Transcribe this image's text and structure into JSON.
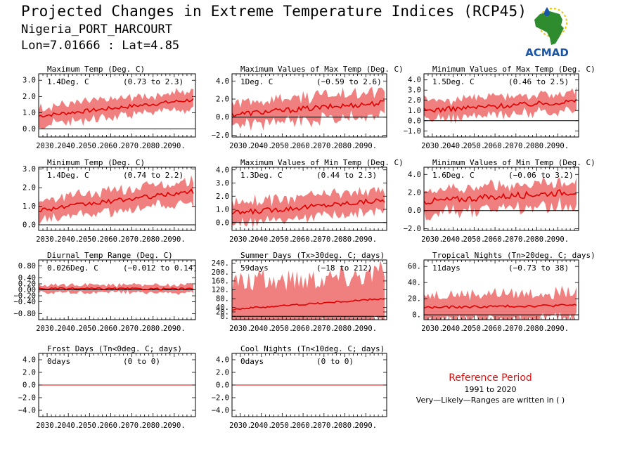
{
  "header": {
    "title": "Projected Changes in Extreme Temperature Indices (RCP45)",
    "location": "Nigeria_PORT_HARCOURT",
    "coords": "Lon=7.01666 : Lat=4.85"
  },
  "logo": {
    "text": "ACMAD",
    "icon": "africa-map-logo"
  },
  "reference": {
    "title": "Reference Period",
    "years": "1991 to 2020",
    "note": "Very—Likely—Ranges are written in ( )"
  },
  "colors": {
    "band": "#f08080",
    "line": "#e00000",
    "zero": "#000000",
    "logo_text": "#1a55a8",
    "logo_green": "#2e8b2e",
    "logo_yellow": "#f0c000"
  },
  "chart_data": [
    {
      "type": "line",
      "title": "Maximum Temp (Deg. C)",
      "mean_text": "1.4Deg. C",
      "range_text": "(0.73 to 2.3)",
      "start": 0.8,
      "end": 1.8,
      "noise": 0.12,
      "band": 0.55,
      "ylim": [
        -0.5,
        3.4
      ],
      "yticks": [
        "0.0",
        "1.0",
        "2.0",
        "3.0"
      ],
      "ytick_values": [
        0,
        1,
        2,
        3
      ],
      "xticks": [
        "2030.",
        "2040.",
        "2050.",
        "2060.",
        "2070.",
        "2080.",
        "2090."
      ],
      "xlim": [
        2026,
        2100
      ]
    },
    {
      "type": "line",
      "title": "Maximum Values of Max Temp (Deg. C)",
      "mean_text": "1Deg. C",
      "range_text": "(−0.59 to 2.6)",
      "start": 0.3,
      "end": 1.6,
      "noise": 0.3,
      "band": 1.3,
      "ylim": [
        -2.2,
        4.8
      ],
      "yticks": [
        "−2.0",
        "0.0",
        "2.0",
        "4.0"
      ],
      "ytick_values": [
        -2,
        0,
        2,
        4
      ],
      "xticks": [
        "2030.",
        "2040.",
        "2050.",
        "2060.",
        "2070.",
        "2080.",
        "2090."
      ],
      "xlim": [
        2026,
        2100
      ]
    },
    {
      "type": "line",
      "title": "Minimum Values of Max Temp (Deg. C)",
      "mean_text": "1.5Deg. C",
      "range_text": "(0.46 to 2.5)",
      "start": 1.0,
      "end": 1.9,
      "noise": 0.25,
      "band": 0.9,
      "ylim": [
        -1.6,
        4.6
      ],
      "yticks": [
        "−1.0",
        "0.0",
        "1.0",
        "2.0",
        "3.0",
        "4.0"
      ],
      "ytick_values": [
        -1,
        0,
        1,
        2,
        3,
        4
      ],
      "xticks": [
        "2030.",
        "2040.",
        "2050.",
        "2060.",
        "2070.",
        "2080.",
        "2090."
      ],
      "xlim": [
        2026,
        2100
      ]
    },
    {
      "type": "line",
      "title": "Minimum Temp (Deg. C)",
      "mean_text": "1.4Deg. C",
      "range_text": "(0.74 to 2.2)",
      "start": 0.8,
      "end": 1.8,
      "noise": 0.12,
      "band": 0.55,
      "ylim": [
        -0.3,
        3.1
      ],
      "yticks": [
        "0.0",
        "1.0",
        "2.0",
        "3.0"
      ],
      "ytick_values": [
        0,
        1,
        2,
        3
      ],
      "xticks": [
        "2030.",
        "2040.",
        "2050.",
        "2060.",
        "2070.",
        "2080.",
        "2090."
      ],
      "xlim": [
        2026,
        2100
      ]
    },
    {
      "type": "line",
      "title": "Maximum Values of Min Temp (Deg. C)",
      "mean_text": "1.3Deg. C",
      "range_text": "(0.44 to 2.3)",
      "start": 0.7,
      "end": 1.7,
      "noise": 0.2,
      "band": 0.8,
      "ylim": [
        -0.6,
        4.2
      ],
      "yticks": [
        "0.0",
        "1.0",
        "2.0",
        "3.0",
        "4.0"
      ],
      "ytick_values": [
        0,
        1,
        2,
        3,
        4
      ],
      "xticks": [
        "2030.",
        "2040.",
        "2050.",
        "2060.",
        "2070.",
        "2080.",
        "2090."
      ],
      "xlim": [
        2026,
        2100
      ]
    },
    {
      "type": "line",
      "title": "Minimum Values of Min Temp (Deg. C)",
      "mean_text": "1.6Deg. C",
      "range_text": "(−0.06 to 3.2)",
      "start": 1.0,
      "end": 2.1,
      "noise": 0.35,
      "band": 1.3,
      "ylim": [
        -2.2,
        4.8
      ],
      "yticks": [
        "−2.0",
        "0.0",
        "2.0",
        "4.0"
      ],
      "ytick_values": [
        -2,
        0,
        2,
        4
      ],
      "xticks": [
        "2030.",
        "2040.",
        "2050.",
        "2060.",
        "2070.",
        "2080.",
        "2090."
      ],
      "xlim": [
        2026,
        2100
      ]
    },
    {
      "type": "line",
      "title": "Diurnal Temp Range (Deg. C)",
      "mean_text": "0.026Deg. C",
      "range_text": "(−0.012 to 0.14)",
      "start": 0.04,
      "end": 0.03,
      "noise": 0.03,
      "band": 0.13,
      "ylim": [
        -1.0,
        1.0
      ],
      "yticks": [
        "−0.80",
        "−0.40",
        "−0.20",
        "0.00",
        "0.20",
        "0.40",
        "0.80"
      ],
      "ytick_values": [
        -0.8,
        -0.4,
        -0.2,
        0,
        0.2,
        0.4,
        0.8
      ],
      "xticks": [
        "2030.",
        "2040.",
        "2050.",
        "2060.",
        "2070.",
        "2080.",
        "2090."
      ],
      "xlim": [
        2026,
        2100
      ]
    },
    {
      "type": "line",
      "title": "Summer Days (Tx>30deg. C; days)",
      "mean_text": "59days",
      "range_text": "(−18 to 212)",
      "start": 32,
      "end": 80,
      "noise": 4,
      "band": 120,
      "ylim": [
        -15,
        255
      ],
      "yticks": [
        "0.",
        "20.",
        "40.",
        "80.",
        "120.",
        "160.",
        "200.",
        "240."
      ],
      "ytick_values": [
        0,
        20,
        40,
        80,
        120,
        160,
        200,
        240
      ],
      "xticks": [
        "2030.",
        "2040.",
        "2050.",
        "2060.",
        "2070.",
        "2080.",
        "2090."
      ],
      "xlim": [
        2026,
        2100
      ]
    },
    {
      "type": "line",
      "title": "Tropical Nights (Tn>20deg. C; days)",
      "mean_text": "11days",
      "range_text": "(−0.73 to 38)",
      "start": 9,
      "end": 12,
      "noise": 1.5,
      "band": 16,
      "ylim": [
        -6,
        68
      ],
      "yticks": [
        "0.",
        "20.",
        "40.",
        "60."
      ],
      "ytick_values": [
        0,
        20,
        40,
        60
      ],
      "xticks": [
        "2030.",
        "2040.",
        "2050.",
        "2060.",
        "2070.",
        "2080.",
        "2090."
      ],
      "xlim": [
        2026,
        2100
      ]
    },
    {
      "type": "line",
      "title": "Frost Days (Tn<0deg. C; days)",
      "mean_text": "0days",
      "range_text": "(0 to 0)",
      "start": 0,
      "end": 0,
      "noise": 0,
      "band": 0,
      "ylim": [
        -5,
        5
      ],
      "yticks": [
        "−4.0",
        "−2.0",
        "0.0",
        "2.0",
        "4.0"
      ],
      "ytick_values": [
        -4,
        -2,
        0,
        2,
        4
      ],
      "xticks": [
        "2030.",
        "2040.",
        "2050.",
        "2060.",
        "2070.",
        "2080.",
        "2090."
      ],
      "xlim": [
        2026,
        2100
      ]
    },
    {
      "type": "line",
      "title": "Cool Nights (Tn<10deg. C; days)",
      "mean_text": "0days",
      "range_text": "(0 to 0)",
      "start": 0,
      "end": 0,
      "noise": 0,
      "band": 0,
      "ylim": [
        -5,
        5
      ],
      "yticks": [
        "−4.0",
        "−2.0",
        "0.0",
        "2.0",
        "4.0"
      ],
      "ytick_values": [
        -4,
        -2,
        0,
        2,
        4
      ],
      "xticks": [
        "2030.",
        "2040.",
        "2050.",
        "2060.",
        "2070.",
        "2080.",
        "2090."
      ],
      "xlim": [
        2026,
        2100
      ]
    }
  ]
}
